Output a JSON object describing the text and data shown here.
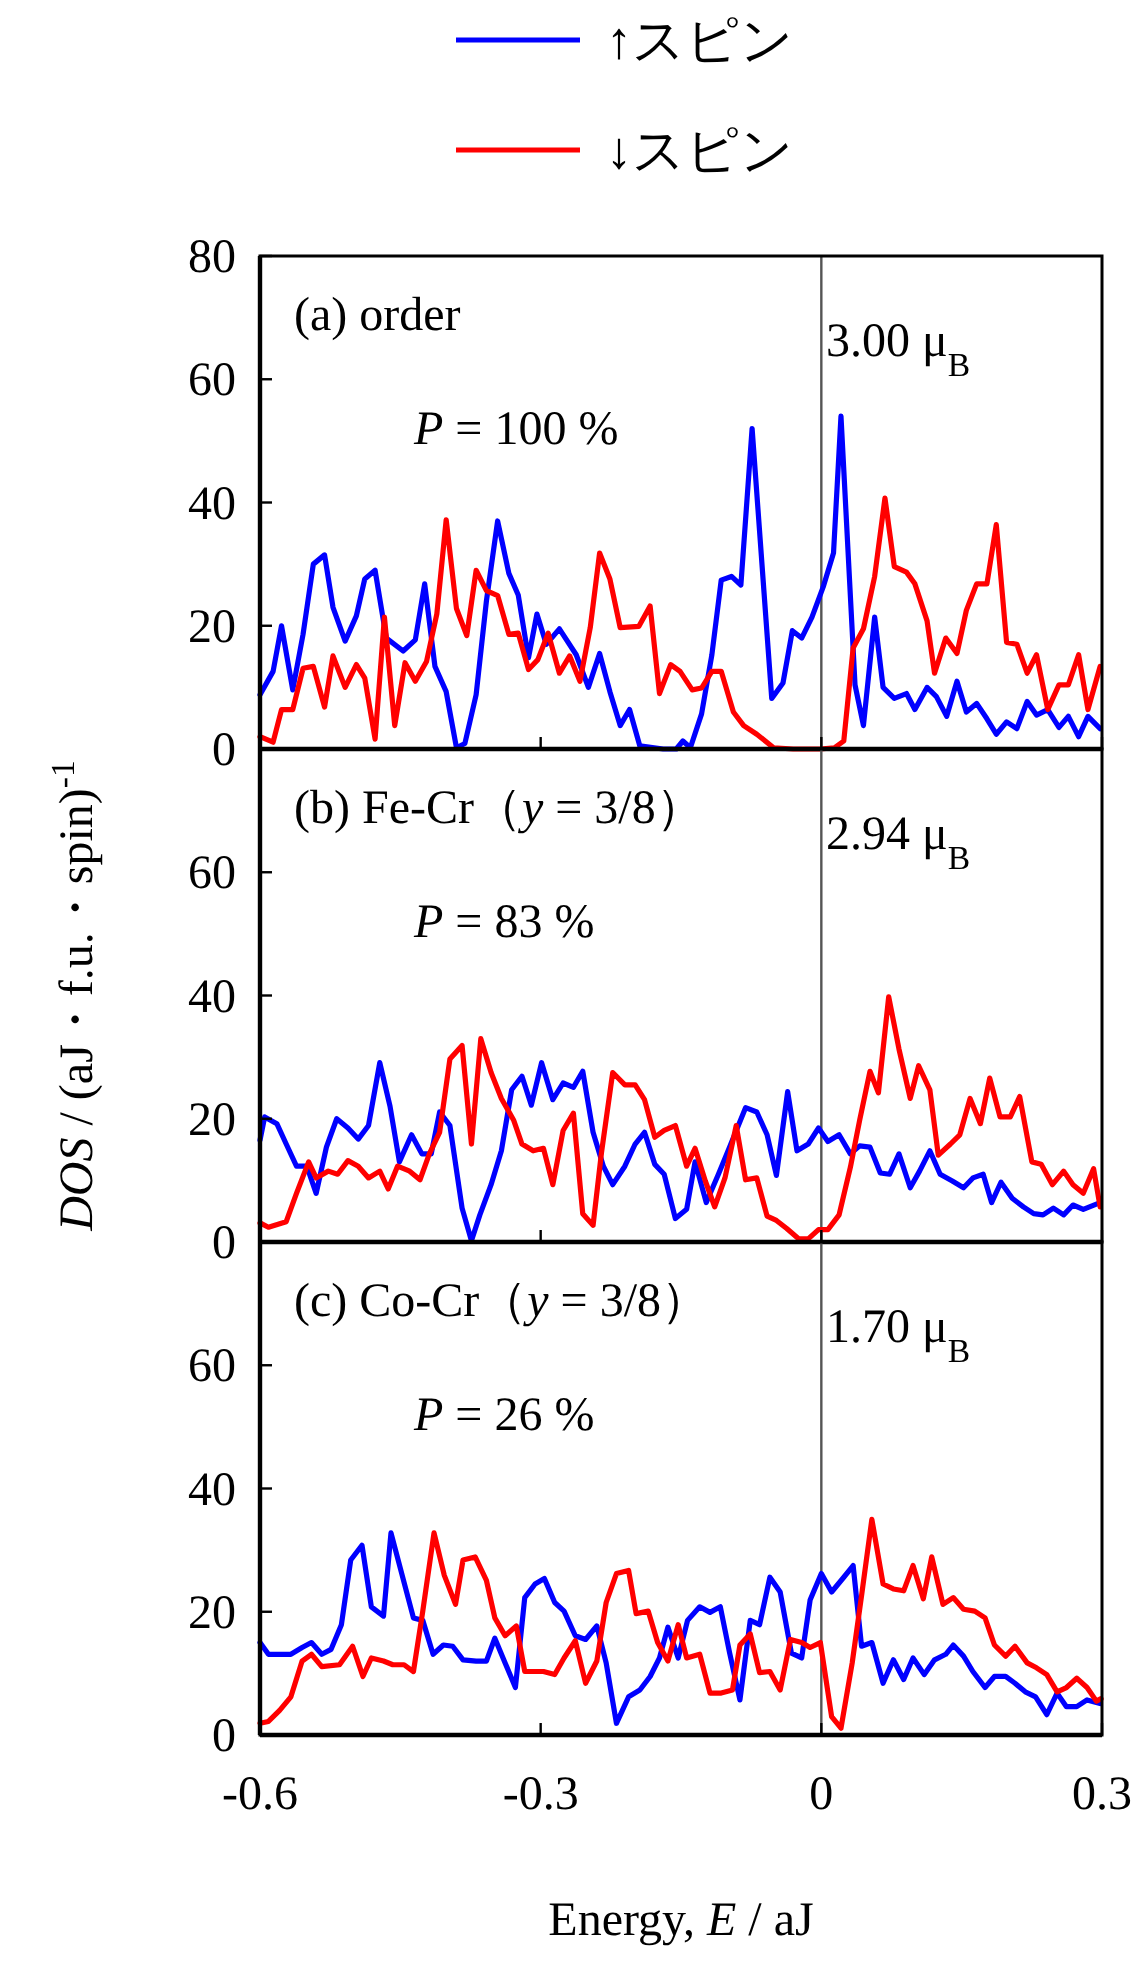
{
  "chart_data": [
    {
      "type": "line",
      "legend": "top",
      "annotations": [
        "(a) order",
        "*P* = 100 %",
        "3.00 μ$_{B}$"
      ],
      "xlim": [
        -0.6,
        0.3
      ],
      "xticks": [
        -0.6,
        -0.3,
        0,
        0.3
      ],
      "ylim": [
        0,
        80
      ],
      "yticks": [
        0,
        20,
        40,
        60,
        80
      ],
      "tick_labels": "y",
      "grid": false,
      "ref_lines": [
        {
          "axis": "x",
          "value": 0,
          "color": "#555555"
        }
      ],
      "series": [
        {
          "name": "↑スピン",
          "color": "#0000ff",
          "x": [
            -0.6,
            -0.586,
            -0.577,
            -0.565,
            -0.554,
            -0.543,
            -0.531,
            -0.522,
            -0.509,
            -0.497,
            -0.488,
            -0.477,
            -0.465,
            -0.447,
            -0.434,
            -0.424,
            -0.413,
            -0.401,
            -0.39,
            -0.381,
            -0.369,
            -0.358,
            -0.346,
            -0.334,
            -0.324,
            -0.313,
            -0.304,
            -0.294,
            -0.28,
            -0.262,
            -0.249,
            -0.237,
            -0.226,
            -0.215,
            -0.205,
            -0.194,
            -0.169,
            -0.155,
            -0.148,
            -0.14,
            -0.128,
            -0.117,
            -0.107,
            -0.096,
            -0.086,
            -0.074,
            -0.053,
            -0.041,
            -0.031,
            -0.021,
            -0.01,
            0.002,
            0.013,
            0.021,
            0.036,
            0.045,
            0.057,
            0.066,
            0.078,
            0.091,
            0.1,
            0.113,
            0.123,
            0.134,
            0.145,
            0.155,
            0.166,
            0.177,
            0.187,
            0.198,
            0.209,
            0.22,
            0.23,
            0.242,
            0.254,
            0.264,
            0.275,
            0.285,
            0.298
          ],
          "values": [
            8.8,
            12.6,
            20,
            9.6,
            18.6,
            30,
            31.5,
            23,
            17.5,
            21.6,
            27.6,
            29,
            18,
            15.9,
            17.7,
            26.8,
            13.4,
            9.3,
            0.2,
            0.9,
            8.8,
            24,
            37,
            28.5,
            25,
            14.8,
            21.9,
            17,
            19.5,
            15.3,
            10,
            15.5,
            9.3,
            3.8,
            6.4,
            0.5,
            0,
            0,
            1.3,
            0.2,
            5.7,
            15.3,
            27.4,
            28,
            26.6,
            52,
            8.2,
            10.7,
            19.2,
            18,
            21.4,
            26.3,
            31.8,
            54,
            10.4,
            3.8,
            21.4,
            10,
            8.2,
            9,
            6.4,
            10,
            8.5,
            5.3,
            11,
            6,
            7.4,
            4.9,
            2.4,
            4.4,
            3.3,
            7.7,
            5.5,
            6.4,
            3.5,
            5.3,
            2,
            5.3,
            3.3
          ]
        },
        {
          "name": "↓スピン",
          "color": "#ff0000",
          "x": [
            -0.6,
            -0.586,
            -0.577,
            -0.565,
            -0.554,
            -0.543,
            -0.531,
            -0.522,
            -0.509,
            -0.497,
            -0.488,
            -0.477,
            -0.467,
            -0.456,
            -0.445,
            -0.434,
            -0.422,
            -0.411,
            -0.401,
            -0.39,
            -0.379,
            -0.369,
            -0.358,
            -0.346,
            -0.334,
            -0.324,
            -0.313,
            -0.303,
            -0.292,
            -0.28,
            -0.269,
            -0.258,
            -0.247,
            -0.237,
            -0.226,
            -0.215,
            -0.195,
            -0.183,
            -0.173,
            -0.161,
            -0.151,
            -0.138,
            -0.128,
            -0.117,
            -0.107,
            -0.094,
            -0.083,
            -0.069,
            -0.051,
            -0.03,
            -0.001,
            0.014,
            0.024,
            0.034,
            0.045,
            0.057,
            0.068,
            0.078,
            0.091,
            0.1,
            0.113,
            0.121,
            0.133,
            0.145,
            0.155,
            0.166,
            0.177,
            0.187,
            0.198,
            0.209,
            0.22,
            0.23,
            0.242,
            0.254,
            0.264,
            0.275,
            0.285,
            0.298
          ],
          "values": [
            2,
            1.1,
            6.4,
            6.4,
            13.1,
            13.4,
            6.8,
            15.1,
            10,
            13.7,
            11.5,
            1.6,
            21.4,
            3.8,
            14,
            11,
            14.2,
            21.9,
            37.2,
            22.8,
            18.4,
            29,
            25.7,
            24.9,
            18.6,
            18.8,
            12.9,
            14.5,
            18.8,
            12.3,
            15.1,
            11,
            19.7,
            31.8,
            27.6,
            19.7,
            19.9,
            23.2,
            9,
            13.7,
            12.6,
            9.6,
            9.9,
            12.6,
            12.6,
            6,
            3.8,
            2.4,
            0.2,
            0,
            0,
            0.2,
            1.3,
            16.4,
            19.5,
            28,
            40.7,
            29.6,
            28.7,
            26.8,
            20.8,
            12.3,
            18,
            15.5,
            22.5,
            26.8,
            26.8,
            36.4,
            17.3,
            17,
            12.3,
            15.3,
            6.4,
            10.4,
            10.4,
            15.3,
            6.4,
            13.4
          ]
        }
      ]
    },
    {
      "type": "line",
      "annotations": [
        "(b) Fe-Cr（*y* = 3/8）",
        "*P* = 83 %",
        "2.94 μ$_{B}$"
      ],
      "ylabel": "*DOS* / (aJ・f.u.・spin)$^{-1}$",
      "xlim": [
        -0.6,
        0.3
      ],
      "xticks": [
        -0.6,
        -0.3,
        0,
        0.3
      ],
      "ylim": [
        0,
        80
      ],
      "yticks": [
        0,
        20,
        40,
        60
      ],
      "tick_labels": "y",
      "grid": false,
      "ref_lines": [
        {
          "axis": "x",
          "value": 0,
          "color": "#555555"
        }
      ],
      "series": [
        {
          "color": "#0000ff",
          "x": [
            -0.6,
            -0.595,
            -0.582,
            -0.572,
            -0.561,
            -0.55,
            -0.54,
            -0.529,
            -0.518,
            -0.506,
            -0.495,
            -0.484,
            -0.472,
            -0.461,
            -0.451,
            -0.438,
            -0.427,
            -0.417,
            -0.408,
            -0.397,
            -0.384,
            -0.374,
            -0.365,
            -0.353,
            -0.342,
            -0.331,
            -0.32,
            -0.31,
            -0.299,
            -0.287,
            -0.276,
            -0.265,
            -0.255,
            -0.244,
            -0.233,
            -0.223,
            -0.21,
            -0.199,
            -0.189,
            -0.178,
            -0.168,
            -0.156,
            -0.144,
            -0.135,
            -0.123,
            -0.11,
            -0.098,
            -0.081,
            -0.069,
            -0.058,
            -0.048,
            -0.036,
            -0.026,
            -0.014,
            -0.003,
            0.007,
            0.019,
            0.031,
            0.041,
            0.052,
            0.063,
            0.073,
            0.083,
            0.095,
            0.105,
            0.116,
            0.127,
            0.14,
            0.152,
            0.162,
            0.173,
            0.182,
            0.192,
            0.204,
            0.216,
            0.227,
            0.237,
            0.248,
            0.259,
            0.269,
            0.28,
            0.298
          ],
          "values": [
            16.5,
            20.3,
            19.2,
            15.9,
            12.3,
            12.3,
            7.9,
            15.4,
            20,
            18.5,
            16.7,
            18.9,
            29.1,
            22,
            13,
            17.4,
            14.3,
            14.3,
            21.1,
            18.9,
            5.5,
            0.2,
            4.4,
            9.3,
            14.8,
            24.7,
            26.9,
            22.2,
            29.1,
            23.1,
            25.8,
            25.1,
            27.7,
            17.8,
            12.3,
            9.3,
            12.3,
            15.9,
            17.8,
            12.6,
            11,
            3.8,
            5.3,
            13,
            6.4,
            11,
            15.4,
            21.8,
            21.1,
            17.4,
            10.8,
            24.4,
            14.8,
            15.9,
            18.5,
            16.3,
            17.4,
            14.3,
            15.6,
            15.4,
            11.2,
            11,
            14.3,
            8.8,
            11.5,
            14.8,
            11,
            9.9,
            8.8,
            10.4,
            11,
            6.4,
            9.7,
            7.1,
            5.7,
            4.6,
            4.4,
            5.5,
            4.4,
            6,
            5.3,
            6.4
          ]
        },
        {
          "color": "#ff0000",
          "x": [
            -0.6,
            -0.591,
            -0.572,
            -0.561,
            -0.548,
            -0.54,
            -0.527,
            -0.517,
            -0.506,
            -0.495,
            -0.484,
            -0.472,
            -0.463,
            -0.453,
            -0.44,
            -0.429,
            -0.419,
            -0.408,
            -0.397,
            -0.384,
            -0.374,
            -0.364,
            -0.353,
            -0.342,
            -0.329,
            -0.32,
            -0.308,
            -0.297,
            -0.287,
            -0.276,
            -0.265,
            -0.255,
            -0.244,
            -0.235,
            -0.223,
            -0.21,
            -0.199,
            -0.189,
            -0.178,
            -0.168,
            -0.156,
            -0.144,
            -0.135,
            -0.124,
            -0.114,
            -0.103,
            -0.091,
            -0.081,
            -0.069,
            -0.058,
            -0.048,
            -0.037,
            -0.024,
            -0.014,
            -0.003,
            0.007,
            0.019,
            0.031,
            0.041,
            0.052,
            0.061,
            0.072,
            0.083,
            0.095,
            0.104,
            0.116,
            0.125,
            0.138,
            0.148,
            0.159,
            0.17,
            0.18,
            0.191,
            0.202,
            0.212,
            0.225,
            0.235,
            0.247,
            0.259,
            0.269,
            0.28,
            0.291,
            0.298
          ],
          "values": [
            3.1,
            2.4,
            3.3,
            7.9,
            13,
            10.4,
            11.5,
            11,
            13.2,
            12.3,
            10.4,
            11.5,
            8.6,
            12.3,
            11.5,
            10.1,
            14.3,
            17.8,
            29.7,
            31.9,
            15.9,
            33,
            27.5,
            23.3,
            19.8,
            15.9,
            14.8,
            15.2,
            9.3,
            18.1,
            20.9,
            4.6,
            2.7,
            14.5,
            27.5,
            25.5,
            25.5,
            23.1,
            17,
            18.1,
            18.9,
            12.3,
            15.2,
            9.9,
            5.7,
            10.4,
            18.9,
            10.1,
            10.4,
            4.2,
            3.5,
            2.2,
            0.5,
            0.5,
            2,
            2,
            4.4,
            12.1,
            19.8,
            27.7,
            24.2,
            39.8,
            31.3,
            23.3,
            28.6,
            24.7,
            14.1,
            15.9,
            17.4,
            23.3,
            19.2,
            26.6,
            20.3,
            20.3,
            23.6,
            13,
            12.6,
            9.3,
            11.5,
            9.3,
            7.9,
            11.9,
            5.7
          ]
        }
      ]
    },
    {
      "type": "line",
      "annotations": [
        "(c) Co-Cr（*y* = 3/8）",
        "*P* = 26 %",
        "1.70 μ$_{B}$"
      ],
      "xlabel": "Energy, *E* / aJ",
      "xlim": [
        -0.6,
        0.3
      ],
      "xticks": [
        -0.6,
        -0.3,
        0,
        0.3
      ],
      "ylim": [
        0,
        80
      ],
      "yticks": [
        0,
        20,
        40,
        60
      ],
      "grid": false,
      "ref_lines": [
        {
          "axis": "x",
          "value": 0,
          "color": "#555555"
        }
      ],
      "series": [
        {
          "color": "#0000ff",
          "x": [
            -0.6,
            -0.591,
            -0.567,
            -0.555,
            -0.545,
            -0.534,
            -0.524,
            -0.513,
            -0.503,
            -0.491,
            -0.481,
            -0.468,
            -0.46,
            -0.448,
            -0.436,
            -0.426,
            -0.415,
            -0.404,
            -0.394,
            -0.383,
            -0.369,
            -0.358,
            -0.349,
            -0.338,
            -0.327,
            -0.317,
            -0.306,
            -0.296,
            -0.285,
            -0.275,
            -0.263,
            -0.252,
            -0.24,
            -0.23,
            -0.219,
            -0.206,
            -0.194,
            -0.183,
            -0.173,
            -0.164,
            -0.153,
            -0.143,
            -0.13,
            -0.119,
            -0.108,
            -0.098,
            -0.087,
            -0.076,
            -0.066,
            -0.055,
            -0.044,
            -0.032,
            -0.021,
            -0.012,
            0.0,
            0.011,
            0.024,
            0.034,
            0.043,
            0.054,
            0.066,
            0.077,
            0.088,
            0.098,
            0.11,
            0.121,
            0.133,
            0.141,
            0.152,
            0.162,
            0.175,
            0.185,
            0.197,
            0.207,
            0.218,
            0.229,
            0.241,
            0.252,
            0.262,
            0.273,
            0.284,
            0.298
          ],
          "values": [
            15,
            13.1,
            13.1,
            14.2,
            15,
            13.1,
            13.9,
            17.9,
            28.4,
            30.8,
            20.8,
            19.3,
            32.8,
            25.9,
            19,
            18.6,
            13.1,
            14.6,
            14.4,
            12.2,
            12,
            12,
            15.7,
            11.7,
            7.7,
            22.3,
            24.5,
            25.4,
            21.5,
            20.1,
            16.1,
            15.5,
            17.7,
            11.7,
            1.9,
            6.2,
            7.3,
            9.5,
            12.5,
            17.5,
            12.5,
            18.6,
            20.8,
            19.9,
            20.8,
            13.3,
            5.7,
            18.6,
            17.9,
            25.6,
            23.2,
            13.3,
            12.5,
            21.9,
            26.2,
            23.2,
            25.6,
            27.5,
            14.4,
            15,
            8.4,
            12.2,
            9,
            12.5,
            9.8,
            12.2,
            13.1,
            14.6,
            12.8,
            10.3,
            7.7,
            9.5,
            9.5,
            8.4,
            7,
            6.2,
            3.3,
            6.8,
            4.6,
            4.6,
            5.7,
            5.1
          ]
        },
        {
          "color": "#ff0000",
          "x": [
            -0.6,
            -0.591,
            -0.579,
            -0.567,
            -0.555,
            -0.545,
            -0.534,
            -0.515,
            -0.501,
            -0.49,
            -0.481,
            -0.468,
            -0.458,
            -0.446,
            -0.436,
            -0.426,
            -0.414,
            -0.403,
            -0.391,
            -0.383,
            -0.37,
            -0.358,
            -0.349,
            -0.338,
            -0.326,
            -0.317,
            -0.297,
            -0.285,
            -0.275,
            -0.263,
            -0.252,
            -0.24,
            -0.23,
            -0.219,
            -0.206,
            -0.198,
            -0.185,
            -0.175,
            -0.164,
            -0.153,
            -0.144,
            -0.13,
            -0.119,
            -0.107,
            -0.095,
            -0.087,
            -0.076,
            -0.066,
            -0.055,
            -0.044,
            -0.033,
            -0.021,
            -0.012,
            -0.001,
            0.011,
            0.021,
            0.033,
            0.043,
            0.054,
            0.066,
            0.077,
            0.088,
            0.098,
            0.109,
            0.118,
            0.13,
            0.141,
            0.152,
            0.164,
            0.175,
            0.185,
            0.197,
            0.207,
            0.22,
            0.23,
            0.241,
            0.252,
            0.262,
            0.273,
            0.284,
            0.294,
            0.299
          ],
          "values": [
            1.9,
            2.2,
            4,
            6.2,
            12,
            13.1,
            11.1,
            11.4,
            14.4,
            9.5,
            12.5,
            12,
            11.4,
            11.4,
            10.3,
            20.1,
            32.8,
            25.9,
            21.2,
            28.4,
            28.9,
            25.1,
            19,
            16.1,
            17.7,
            10.3,
            10.3,
            9.8,
            12.5,
            15.3,
            8.4,
            12,
            21.5,
            26.2,
            26.7,
            19.7,
            20.1,
            15,
            12,
            17.9,
            12.5,
            13.1,
            6.8,
            6.8,
            7.3,
            14.6,
            16.4,
            10.1,
            10.3,
            7.3,
            15.5,
            15,
            14.2,
            15,
            3,
            1.1,
            11.7,
            22.6,
            35,
            24.5,
            23.7,
            23.4,
            27.5,
            22.1,
            28.9,
            21.2,
            22.3,
            20.4,
            20.1,
            19,
            14.6,
            12.8,
            14.4,
            11.7,
            10.9,
            9.8,
            7,
            7.7,
            9.2,
            7.7,
            5.5,
            5.9
          ]
        }
      ]
    }
  ]
}
